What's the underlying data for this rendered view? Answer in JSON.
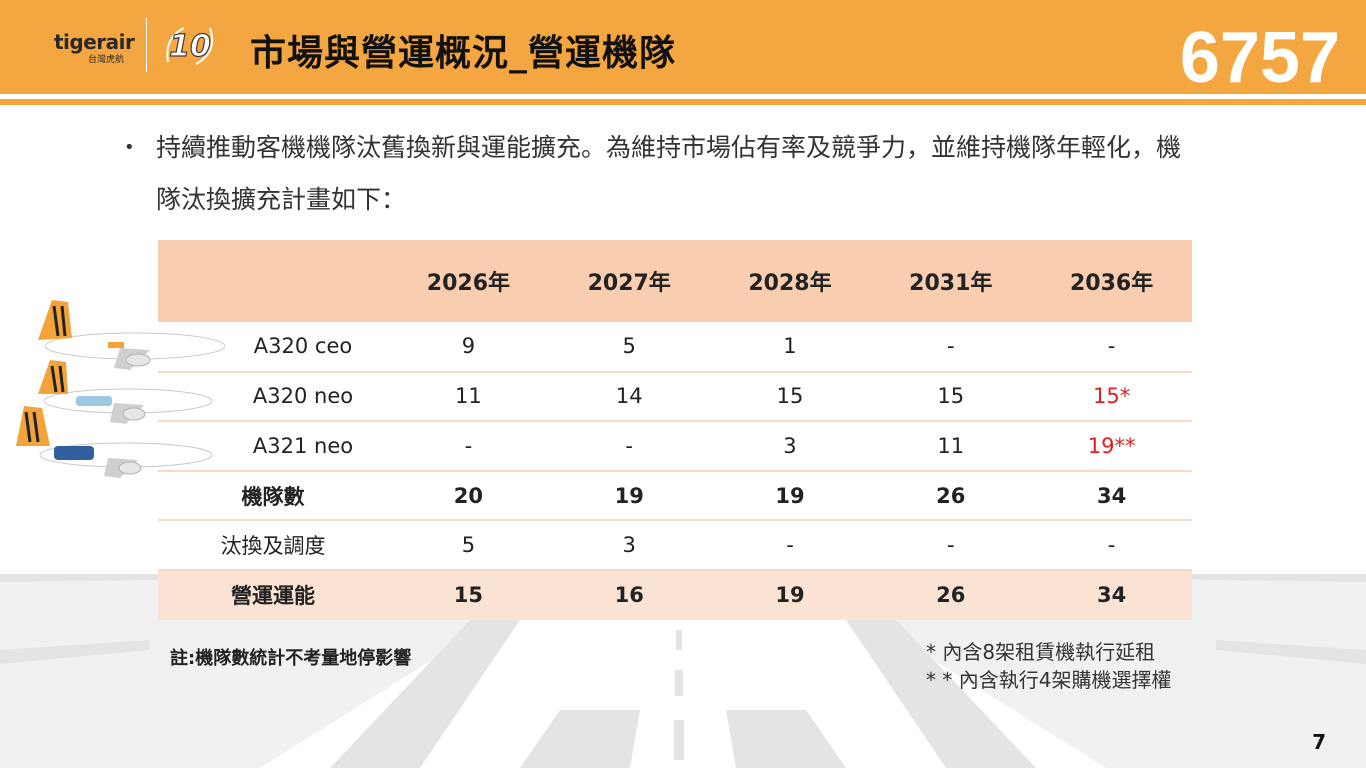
{
  "header": {
    "logo_text": "tigerair",
    "logo_subtext": "台灣虎航",
    "badge": "10",
    "title": "市場與營運概況_營運機隊",
    "ticker": "6757"
  },
  "bullet": {
    "text": "持續推動客機機隊汰舊換新與運能擴充。為維持市場佔有率及競爭力，並維持機隊年輕化，機隊汰換擴充計畫如下："
  },
  "table": {
    "headers": [
      "",
      "2026年",
      "2027年",
      "2028年",
      "2031年",
      "2036年"
    ],
    "rows": [
      {
        "label": "A320 ceo",
        "values": [
          "9",
          "5",
          "1",
          "-",
          "-"
        ]
      },
      {
        "label": "A320 neo",
        "values": [
          "11",
          "14",
          "15",
          "15",
          "15*"
        ]
      },
      {
        "label": "A321 neo",
        "values": [
          "-",
          "-",
          "3",
          "11",
          "19**"
        ]
      },
      {
        "label": "機隊數",
        "values": [
          "20",
          "19",
          "19",
          "26",
          "34"
        ]
      },
      {
        "label": "汰換及調度",
        "values": [
          "5",
          "3",
          "-",
          "-",
          "-"
        ]
      },
      {
        "label": "營運運能",
        "values": [
          "15",
          "16",
          "19",
          "26",
          "34"
        ]
      }
    ],
    "highlight_color": "#e0201f"
  },
  "notes": {
    "left": "註:機隊數統計不考量地停影響",
    "right_1": "*   內含8架租賃機執行延租",
    "right_2": "* * 內含執行4架購機選擇權"
  },
  "page_number": "7",
  "colors": {
    "header": "#f4a640",
    "table_header": "#f8cdb0",
    "total_row": "#fbe3d3"
  }
}
